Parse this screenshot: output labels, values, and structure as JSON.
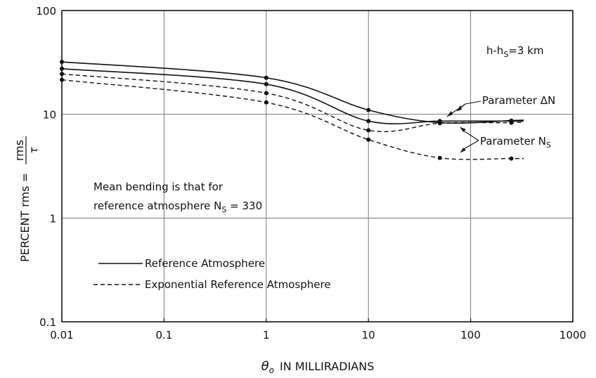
{
  "chart_data": {
    "type": "line",
    "x_scale": "log",
    "y_scale": "log",
    "xlim": [
      0.01,
      1000
    ],
    "ylim": [
      0.1,
      100
    ],
    "x_ticks": [
      "0.01",
      "0.1",
      "1",
      "10",
      "100",
      "1000"
    ],
    "y_ticks": [
      "0.1",
      "1",
      "10",
      "100"
    ],
    "xlabel": {
      "symbol": "θ",
      "sub": "o",
      "text": "IN MILLIRADIANS"
    },
    "ylabel": {
      "text": "PERCENT rms =",
      "num": "rms",
      "den": "τ"
    },
    "grid": "major lines at decades",
    "annotations": {
      "height": {
        "text": "h-h",
        "sub": "S",
        "rest": "=3 km"
      },
      "param_dn": "Parameter ΔN",
      "param_ns": {
        "text": "Parameter N",
        "sub": "S"
      },
      "note_line1": "Mean bending is that for",
      "note_line2": {
        "text": "reference atmosphere N",
        "sub": "S",
        "rest": " = 330"
      }
    },
    "legend": [
      {
        "label": "Reference Atmosphere",
        "style": "solid"
      },
      {
        "label": "Exponential Reference Atmosphere",
        "style": "dashed"
      }
    ],
    "series": [
      {
        "style": "solid",
        "x": [
          0.01,
          1,
          10,
          50,
          250,
          330
        ],
        "y": [
          32,
          22.5,
          11,
          8.3,
          8.7,
          8.8
        ]
      },
      {
        "style": "solid",
        "x": [
          0.01,
          1,
          10,
          50,
          250,
          330
        ],
        "y": [
          27.5,
          19.5,
          8.6,
          8.6,
          8.6,
          8.6
        ]
      },
      {
        "style": "dashed",
        "x": [
          0.01,
          1,
          10,
          50,
          250,
          330
        ],
        "y": [
          24.5,
          16,
          7,
          8.2,
          8.3,
          8.5
        ]
      },
      {
        "style": "dashed",
        "x": [
          0.01,
          1,
          10,
          50,
          250,
          330
        ],
        "y": [
          21.5,
          13,
          5.7,
          3.8,
          3.75,
          3.75
        ]
      }
    ]
  }
}
